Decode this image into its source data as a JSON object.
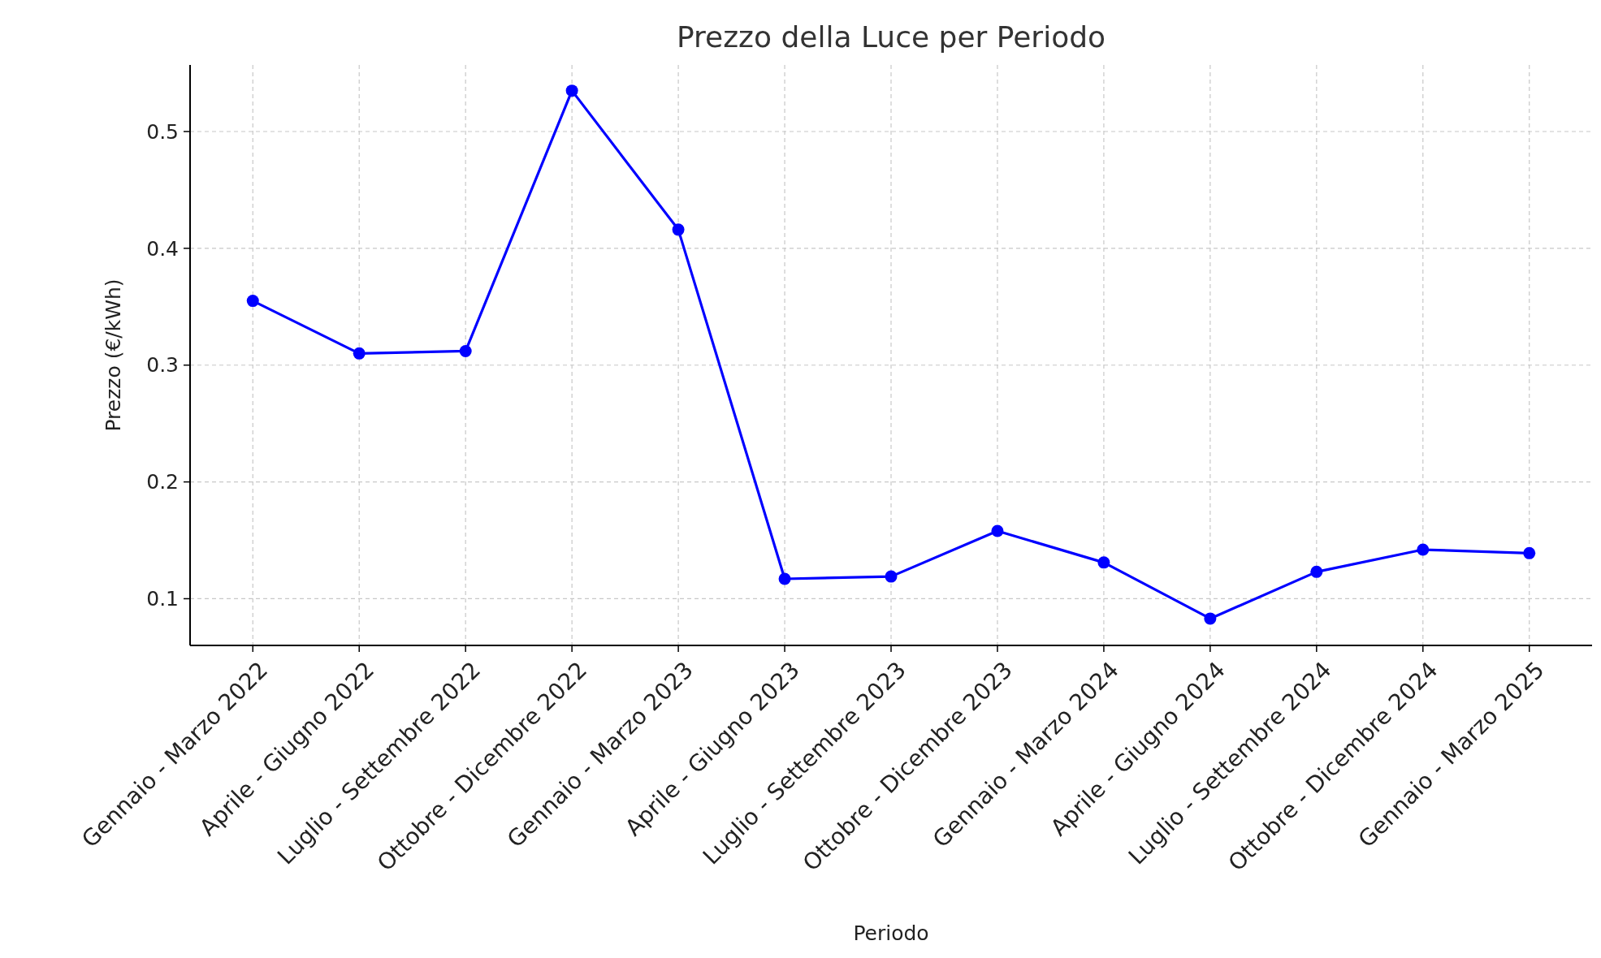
{
  "chart_data": {
    "type": "line",
    "title": "Prezzo della Luce per Periodo",
    "xlabel": "Periodo",
    "ylabel": "Prezzo (€/kWh)",
    "categories": [
      "Gennaio - Marzo 2022",
      "Aprile - Giugno 2022",
      "Luglio - Settembre 2022",
      "Ottobre - Dicembre 2022",
      "Gennaio - Marzo 2023",
      "Aprile - Giugno 2023",
      "Luglio - Settembre 2023",
      "Ottobre - Dicembre 2023",
      "Gennaio - Marzo 2024",
      "Aprile - Giugno 2024",
      "Luglio - Settembre 2024",
      "Ottobre - Dicembre 2024",
      "Gennaio - Marzo 2025"
    ],
    "series": [
      {
        "color": "#0000ff",
        "values": [
          0.355,
          0.31,
          0.312,
          0.535,
          0.416,
          0.117,
          0.119,
          0.158,
          0.131,
          0.083,
          0.123,
          0.142,
          0.139
        ]
      }
    ],
    "ylim": [
      0.06,
      0.557
    ],
    "yticks": [
      0.1,
      0.2,
      0.3,
      0.4,
      0.5
    ],
    "grid": true,
    "marker": "circle",
    "line_style": "solid"
  }
}
